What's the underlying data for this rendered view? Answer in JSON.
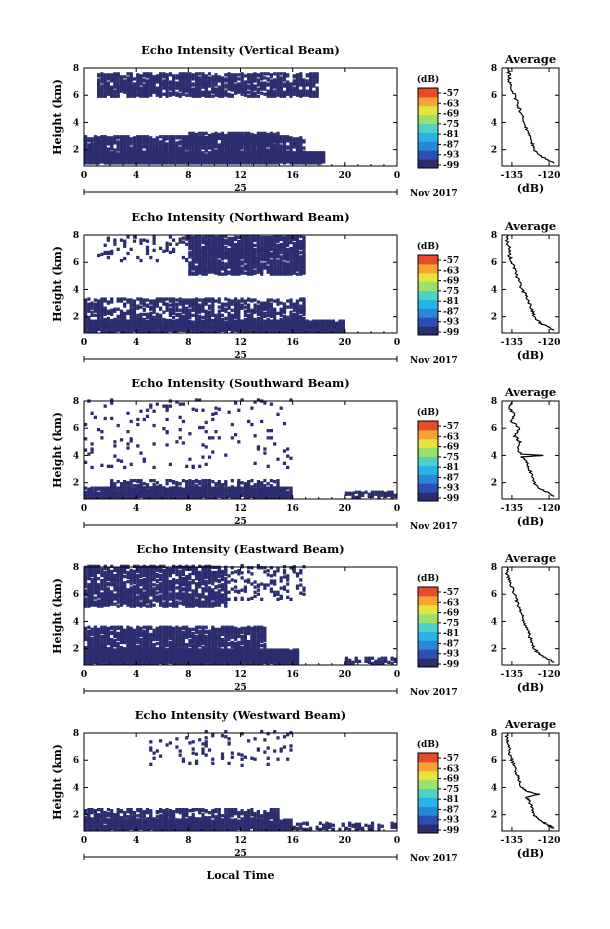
{
  "colors": {
    "echo": "#2b2d6e",
    "colorbar": [
      "#2b2d6e",
      "#2c4fb5",
      "#2a86d6",
      "#27b3e6",
      "#4fd1c6",
      "#9be06a",
      "#e6e43a",
      "#f6a333",
      "#e84a2a"
    ]
  },
  "figure": {
    "xlabel": "Local Time",
    "date_day": "25",
    "date_month": "Nov 2017",
    "colorbar_unit": "(dB)",
    "colorbar_ticks": [
      "-57",
      "-63",
      "-69",
      "-75",
      "-81",
      "-87",
      "-93",
      "-99"
    ],
    "avg_title": "Average",
    "avg_xlabel": "(dB)",
    "ylabel": "Height (km)"
  },
  "chart_data": [
    {
      "type": "heatmap",
      "title": "Echo Intensity (Vertical Beam)",
      "xlabel": "",
      "ylabel": "Height (km)",
      "x_ticks": [
        "0",
        "4",
        "8",
        "12",
        "16",
        "20",
        "0"
      ],
      "xlim": [
        0,
        24
      ],
      "y_ticks": [
        "2",
        "4",
        "6",
        "8"
      ],
      "ylim": [
        0.8,
        8.0
      ],
      "value_unit": "dB",
      "value_range": [
        -99,
        -57
      ],
      "echo_regions": [
        {
          "t": [
            0.0,
            18.5
          ],
          "h": [
            0.9,
            1.7
          ],
          "density": 0.95
        },
        {
          "t": [
            0.0,
            17.0
          ],
          "h": [
            1.7,
            2.9
          ],
          "density": 0.55
        },
        {
          "t": [
            8.0,
            15.0
          ],
          "h": [
            2.4,
            3.1
          ],
          "density": 0.7
        },
        {
          "t": [
            1.0,
            18.0
          ],
          "h": [
            5.8,
            7.5
          ],
          "density": 0.55
        }
      ],
      "average": {
        "title": "Average",
        "xlabel": "(dB)",
        "x_ticks": [
          "-135",
          "-120"
        ],
        "xlim": [
          -139,
          -116
        ],
        "y_ticks": [
          "2",
          "4",
          "6",
          "8"
        ],
        "ylim": [
          0.8,
          8.0
        ],
        "profile": {
          "h": [
            1.0,
            1.3,
            1.6,
            2.0,
            2.5,
            3.0,
            3.5,
            4.0,
            4.5,
            5.0,
            5.5,
            6.0,
            6.5,
            7.0,
            7.5,
            8.0
          ],
          "db": [
            -118,
            -121,
            -124,
            -126,
            -127,
            -128,
            -129,
            -130,
            -131,
            -132,
            -133,
            -134,
            -135,
            -136,
            -136,
            -137
          ]
        }
      },
      "date_day": "25",
      "date_month": "Nov 2017"
    },
    {
      "type": "heatmap",
      "title": "Echo Intensity (Northward Beam)",
      "xlabel": "",
      "ylabel": "Height (km)",
      "x_ticks": [
        "0",
        "4",
        "8",
        "12",
        "16",
        "20",
        "0"
      ],
      "xlim": [
        0,
        24
      ],
      "y_ticks": [
        "2",
        "4",
        "6",
        "8"
      ],
      "ylim": [
        0.8,
        8.0
      ],
      "value_unit": "dB",
      "value_range": [
        -99,
        -57
      ],
      "echo_regions": [
        {
          "t": [
            0.0,
            20.0
          ],
          "h": [
            0.8,
            1.6
          ],
          "density": 0.9
        },
        {
          "t": [
            0.0,
            17.0
          ],
          "h": [
            1.6,
            3.2
          ],
          "density": 0.4
        },
        {
          "t": [
            8.0,
            17.0
          ],
          "h": [
            5.0,
            7.8
          ],
          "density": 0.6
        },
        {
          "t": [
            1.0,
            8.0
          ],
          "h": [
            6.0,
            7.8
          ],
          "density": 0.1
        }
      ],
      "average": {
        "title": "Average",
        "xlabel": "(dB)",
        "x_ticks": [
          "-135",
          "-120"
        ],
        "xlim": [
          -139,
          -116
        ],
        "y_ticks": [
          "2",
          "4",
          "6",
          "8"
        ],
        "ylim": [
          0.8,
          8.0
        ],
        "profile": {
          "h": [
            1.0,
            1.3,
            1.6,
            2.0,
            2.5,
            3.0,
            3.5,
            4.0,
            4.5,
            5.0,
            5.5,
            6.0,
            6.5,
            7.0,
            7.5,
            8.0
          ],
          "db": [
            -118,
            -121,
            -124,
            -126,
            -127,
            -128,
            -129,
            -131,
            -132,
            -133,
            -134,
            -135,
            -136,
            -136,
            -137,
            -137
          ]
        }
      },
      "date_day": "25",
      "date_month": "Nov 2017"
    },
    {
      "type": "heatmap",
      "title": "Echo Intensity (Southward Beam)",
      "xlabel": "",
      "ylabel": "Height (km)",
      "x_ticks": [
        "0",
        "4",
        "8",
        "12",
        "16",
        "20",
        "0"
      ],
      "xlim": [
        0,
        24
      ],
      "y_ticks": [
        "2",
        "4",
        "6",
        "8"
      ],
      "ylim": [
        0.8,
        8.0
      ],
      "value_unit": "dB",
      "value_range": [
        -99,
        -57
      ],
      "echo_regions": [
        {
          "t": [
            0.0,
            16.0
          ],
          "h": [
            0.8,
            1.5
          ],
          "density": 0.85
        },
        {
          "t": [
            2.0,
            15.0
          ],
          "h": [
            1.5,
            2.1
          ],
          "density": 0.35
        },
        {
          "t": [
            0.0,
            16.0
          ],
          "h": [
            3.0,
            8.0
          ],
          "density": 0.03
        },
        {
          "t": [
            20.0,
            24.0
          ],
          "h": [
            0.8,
            1.2
          ],
          "density": 0.5
        }
      ],
      "average": {
        "title": "Average",
        "xlabel": "(dB)",
        "x_ticks": [
          "-135",
          "-120"
        ],
        "xlim": [
          -139,
          -116
        ],
        "y_ticks": [
          "2",
          "4",
          "6",
          "8"
        ],
        "ylim": [
          0.8,
          8.0
        ],
        "profile": {
          "h": [
            1.0,
            1.3,
            1.6,
            2.0,
            2.5,
            3.0,
            3.5,
            3.9,
            4.0,
            4.1,
            4.5,
            5.0,
            5.5,
            6.0,
            6.5,
            7.0,
            7.5,
            8.0
          ],
          "db": [
            -118,
            -121,
            -124,
            -126,
            -127,
            -128,
            -129,
            -131,
            -122,
            -131,
            -133,
            -132,
            -134,
            -132,
            -135,
            -134,
            -136,
            -135
          ]
        }
      },
      "date_day": "25",
      "date_month": "Nov 2017"
    },
    {
      "type": "heatmap",
      "title": "Echo Intensity (Eastward Beam)",
      "xlabel": "",
      "ylabel": "Height (km)",
      "x_ticks": [
        "0",
        "4",
        "8",
        "12",
        "16",
        "20",
        "0"
      ],
      "xlim": [
        0,
        24
      ],
      "y_ticks": [
        "2",
        "4",
        "6",
        "8"
      ],
      "ylim": [
        0.8,
        8.0
      ],
      "value_unit": "dB",
      "value_range": [
        -99,
        -57
      ],
      "echo_regions": [
        {
          "t": [
            0.0,
            16.5
          ],
          "h": [
            0.8,
            1.8
          ],
          "density": 0.95
        },
        {
          "t": [
            0.0,
            14.0
          ],
          "h": [
            1.8,
            3.5
          ],
          "density": 0.6
        },
        {
          "t": [
            0.0,
            11.0
          ],
          "h": [
            5.0,
            8.0
          ],
          "density": 0.55
        },
        {
          "t": [
            11.0,
            17.0
          ],
          "h": [
            5.5,
            8.0
          ],
          "density": 0.15
        },
        {
          "t": [
            20.0,
            24.0
          ],
          "h": [
            0.8,
            1.2
          ],
          "density": 0.45
        }
      ],
      "average": {
        "title": "Average",
        "xlabel": "(dB)",
        "x_ticks": [
          "-135",
          "-120"
        ],
        "xlim": [
          -139,
          -116
        ],
        "y_ticks": [
          "2",
          "4",
          "6",
          "8"
        ],
        "ylim": [
          0.8,
          8.0
        ],
        "profile": {
          "h": [
            1.0,
            1.3,
            1.6,
            2.0,
            2.5,
            3.0,
            3.5,
            4.0,
            4.5,
            5.0,
            5.5,
            6.0,
            6.5,
            7.0,
            7.5,
            8.0
          ],
          "db": [
            -118,
            -121,
            -124,
            -126,
            -127,
            -128,
            -129,
            -130,
            -131,
            -132,
            -133,
            -134,
            -135,
            -136,
            -137,
            -137
          ]
        }
      },
      "date_day": "25",
      "date_month": "Nov 2017"
    },
    {
      "type": "heatmap",
      "title": "Echo Intensity (Westward Beam)",
      "xlabel": "Local Time",
      "ylabel": "Height (km)",
      "x_ticks": [
        "0",
        "4",
        "8",
        "12",
        "16",
        "20",
        "0"
      ],
      "xlim": [
        0,
        24
      ],
      "y_ticks": [
        "2",
        "4",
        "6",
        "8"
      ],
      "ylim": [
        0.8,
        8.0
      ],
      "value_unit": "dB",
      "value_range": [
        -99,
        -57
      ],
      "echo_regions": [
        {
          "t": [
            0.0,
            16.0
          ],
          "h": [
            0.8,
            1.5
          ],
          "density": 0.9
        },
        {
          "t": [
            0.0,
            15.0
          ],
          "h": [
            1.5,
            2.3
          ],
          "density": 0.45
        },
        {
          "t": [
            5.0,
            16.0
          ],
          "h": [
            5.5,
            8.0
          ],
          "density": 0.06
        },
        {
          "t": [
            16.0,
            24.0
          ],
          "h": [
            0.8,
            1.3
          ],
          "density": 0.35
        }
      ],
      "average": {
        "title": "Average",
        "xlabel": "(dB)",
        "x_ticks": [
          "-135",
          "-120"
        ],
        "xlim": [
          -139,
          -116
        ],
        "y_ticks": [
          "2",
          "4",
          "6",
          "8"
        ],
        "ylim": [
          0.8,
          8.0
        ],
        "profile": {
          "h": [
            1.0,
            1.3,
            1.6,
            2.0,
            2.5,
            3.0,
            3.3,
            3.5,
            3.7,
            4.0,
            4.5,
            5.0,
            5.5,
            6.0,
            6.5,
            7.0,
            7.5,
            8.0
          ],
          "db": [
            -118,
            -121,
            -124,
            -126,
            -127,
            -128,
            -129,
            -124,
            -129,
            -131,
            -132,
            -133,
            -134,
            -135,
            -136,
            -136,
            -137,
            -137
          ]
        }
      },
      "date_day": "25",
      "date_month": "Nov 2017"
    }
  ]
}
